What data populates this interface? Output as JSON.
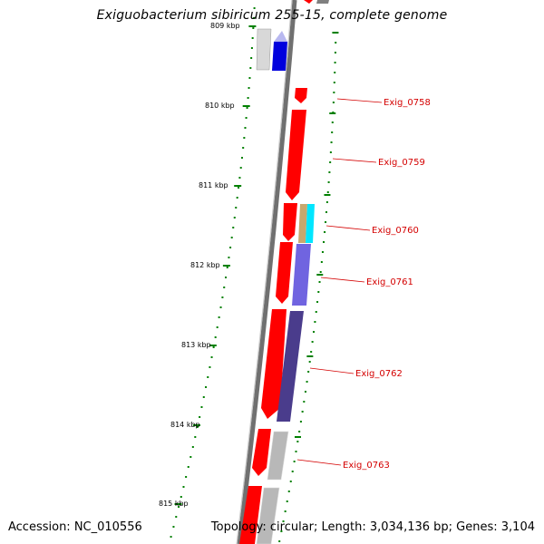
{
  "title": "Exiguobacterium sibiricum 255-15, complete genome",
  "footer": {
    "accession": "Accession: NC_010556",
    "topology": "Topology: circular; Length: 3,034,136 bp; Genes: 3,104"
  },
  "scale": {
    "labels": [
      "809 kbp",
      "810 kbp",
      "811 kbp",
      "812 kbp",
      "813 kbp",
      "814 kbp",
      "815 kbp"
    ]
  },
  "genes": [
    {
      "name": "Exig_0758"
    },
    {
      "name": "Exig_0759"
    },
    {
      "name": "Exig_0760"
    },
    {
      "name": "Exig_0761"
    },
    {
      "name": "Exig_0762"
    },
    {
      "name": "Exig_0763"
    }
  ],
  "colors": {
    "forward_gene": "#ff0000",
    "backbone": "#808080",
    "tick": "#008000",
    "label": "#d40000",
    "blue": "#0000ee",
    "light_blue": "#c8c8ff",
    "tan": "#c8a86e",
    "cyan": "#00e6ff",
    "slate_blue": "#7060e0",
    "dark_slate": "#4a3c8c",
    "gray": "#b0b0b0",
    "light_gray": "#e0e0e0"
  }
}
